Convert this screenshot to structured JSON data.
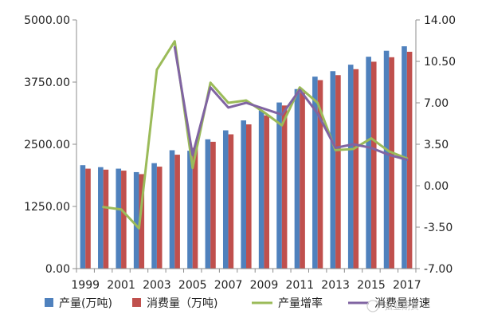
{
  "chart_data": {
    "type": "bar",
    "categories": [
      "1999",
      "2000",
      "2001",
      "2002",
      "2003",
      "2004",
      "2005",
      "2006",
      "2007",
      "2008",
      "2009",
      "2010",
      "2011",
      "2012",
      "2013",
      "2014",
      "2015",
      "2016",
      "2017"
    ],
    "x_tick_labels": [
      "1999",
      "2001",
      "2003",
      "2005",
      "2007",
      "2009",
      "2011",
      "2013",
      "2015",
      "2017"
    ],
    "y_left": {
      "ylim": [
        0,
        5000
      ],
      "ticks": [
        "0.00",
        "1250.00",
        "2500.00",
        "3750.00",
        "5000.00"
      ]
    },
    "y_right": {
      "ylim": [
        -7,
        14
      ],
      "ticks": [
        "-7.00",
        "-3.50",
        "0.00",
        "3.50",
        "7.00",
        "10.50",
        "14.00"
      ]
    },
    "bar_series": [
      {
        "name": "产量(万吨)",
        "color": "#4f81bd",
        "values": [
          2080,
          2040,
          2010,
          1940,
          2120,
          2380,
          2370,
          2600,
          2780,
          2980,
          3180,
          3340,
          3610,
          3860,
          3970,
          4100,
          4260,
          4380,
          4470
        ]
      },
      {
        "name": "消费量（万吨)",
        "color": "#c0504d",
        "values": [
          2010,
          1990,
          1970,
          1900,
          2050,
          2290,
          2430,
          2550,
          2700,
          2900,
          3080,
          3280,
          3540,
          3790,
          3890,
          4010,
          4160,
          4250,
          4360
        ]
      }
    ],
    "line_series": [
      {
        "name": "产量增率",
        "color": "#9bbb59",
        "values": [
          null,
          -1.8,
          -2.0,
          -3.6,
          9.8,
          12.2,
          1.5,
          8.7,
          7.0,
          7.2,
          6.2,
          5.1,
          8.3,
          7.0,
          3.0,
          3.1,
          4.0,
          2.9,
          2.3
        ]
      },
      {
        "name": "消费量增速",
        "color": "#8064a2",
        "values": [
          null,
          null,
          null,
          null,
          null,
          11.7,
          2.6,
          8.3,
          6.6,
          7.0,
          6.5,
          6.0,
          8.1,
          6.1,
          3.2,
          3.5,
          3.2,
          2.6,
          2.2
        ]
      }
    ],
    "grid": false,
    "legend_position": "bottom"
  },
  "watermark": "弘业期货"
}
